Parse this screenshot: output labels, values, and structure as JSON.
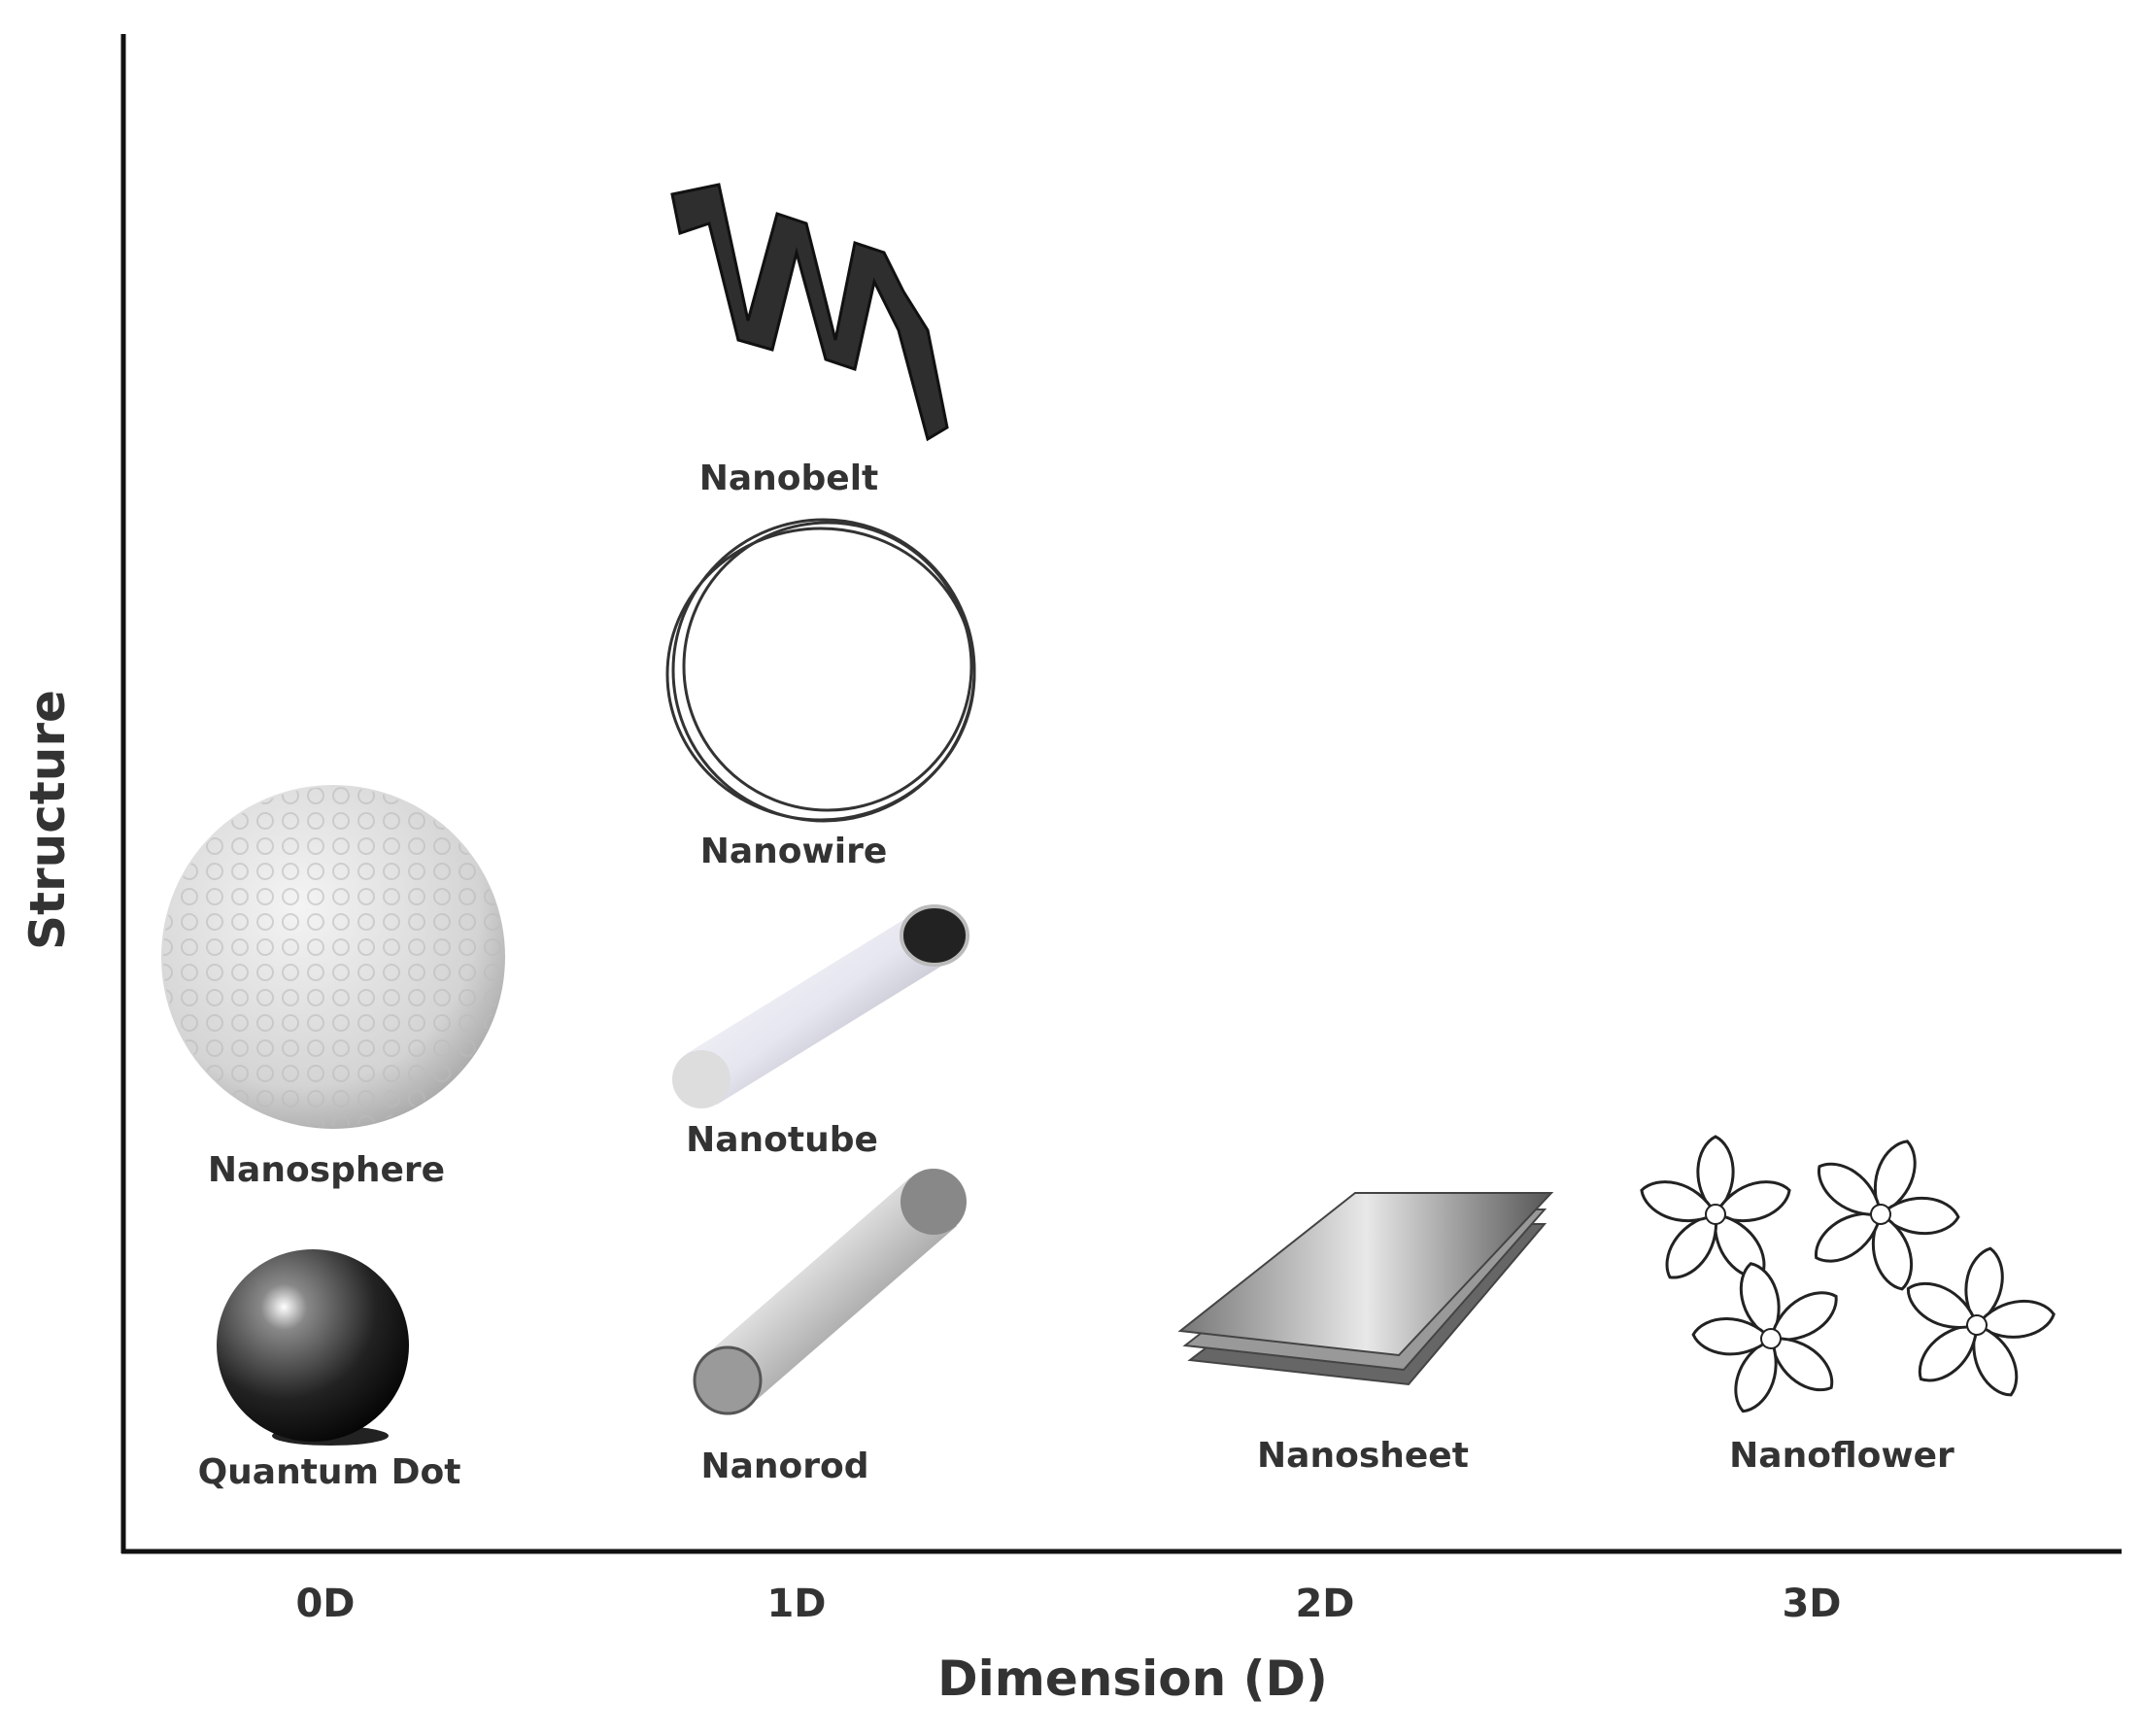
{
  "axes": {
    "y_label": "Structure",
    "x_label": "Dimension (D)"
  },
  "columns": [
    {
      "label": "0D",
      "items": [
        "Nanosphere",
        "Quantum Dot"
      ]
    },
    {
      "label": "1D",
      "items": [
        "Nanobelt",
        "Nanowire",
        "Nanotube",
        "Nanorod"
      ]
    },
    {
      "label": "2D",
      "items": [
        "Nanosheet"
      ]
    },
    {
      "label": "3D",
      "items": [
        "Nanoflower"
      ]
    }
  ]
}
